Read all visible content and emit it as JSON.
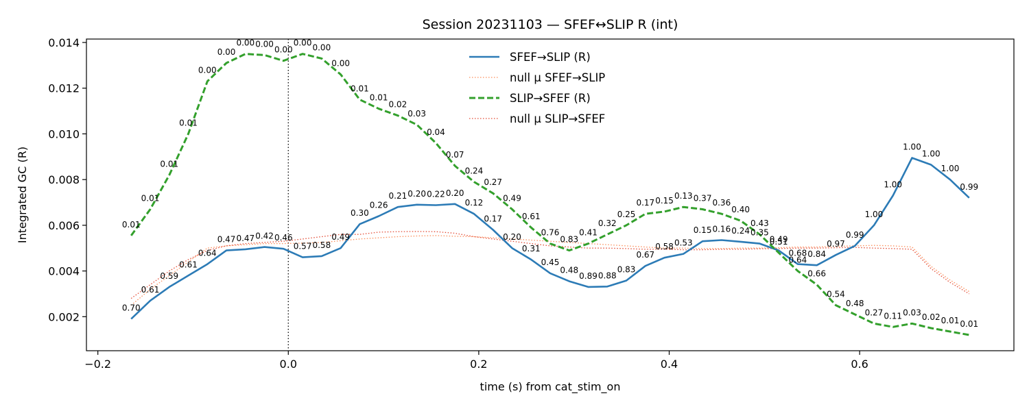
{
  "chart_data": {
    "type": "line",
    "title": "Session 20231103 — SFEF↔SLIP R (int)",
    "xlabel": "time (s) from cat_stim_on",
    "ylabel": "Integrated GC (R)",
    "xlim": [
      -0.212,
      0.762
    ],
    "ylim": [
      0.00051,
      0.01415
    ],
    "xticks": [
      -0.2,
      0.0,
      0.2,
      0.4,
      0.6
    ],
    "xtick_labels": [
      "−0.2",
      "0.0",
      "0.2",
      "0.4",
      "0.6"
    ],
    "yticks": [
      0.002,
      0.004,
      0.006,
      0.008,
      0.01,
      0.012,
      0.014
    ],
    "ytick_labels": [
      "0.002",
      "0.004",
      "0.006",
      "0.008",
      "0.010",
      "0.012",
      "0.014"
    ],
    "grid": false,
    "legend_position": "top-center",
    "vline": {
      "x": 0.0,
      "style": "dotted",
      "color": "#000000"
    },
    "x": [
      -0.165,
      -0.145,
      -0.125,
      -0.105,
      -0.085,
      -0.065,
      -0.045,
      -0.025,
      -0.005,
      0.015,
      0.035,
      0.055,
      0.075,
      0.095,
      0.115,
      0.135,
      0.155,
      0.175,
      0.195,
      0.215,
      0.235,
      0.255,
      0.275,
      0.295,
      0.315,
      0.335,
      0.355,
      0.375,
      0.395,
      0.415,
      0.435,
      0.455,
      0.475,
      0.495,
      0.515,
      0.535,
      0.555,
      0.575,
      0.595,
      0.615,
      0.635,
      0.655,
      0.675,
      0.695,
      0.715
    ],
    "series": [
      {
        "name": "SFEF→SLIP (R)",
        "color": "#2c7bb6",
        "style": "solid",
        "values": [
          0.0019,
          0.0027,
          0.0033,
          0.0038,
          0.0043,
          0.0049,
          0.00495,
          0.00505,
          0.00497,
          0.0046,
          0.00465,
          0.005,
          0.00605,
          0.0064,
          0.0068,
          0.0069,
          0.00688,
          0.00693,
          0.0065,
          0.0058,
          0.005,
          0.0045,
          0.0039,
          0.00355,
          0.0033,
          0.00332,
          0.00358,
          0.00422,
          0.00458,
          0.00475,
          0.0053,
          0.00535,
          0.00528,
          0.0052,
          0.0049,
          0.0043,
          0.00425,
          0.0047,
          0.0051,
          0.006,
          0.0073,
          0.00895,
          0.00865,
          0.008,
          0.0072
        ],
        "annotations": [
          "0.70",
          "0.61",
          "0.59",
          "0.61",
          "0.64",
          "0.47",
          "0.47",
          "0.42",
          "0.46",
          "0.57",
          "0.58",
          "0.49",
          "0.30",
          "0.26",
          "0.21",
          "0.20",
          "0.22",
          "0.20",
          "0.12",
          "0.17",
          "0.20",
          "0.31",
          "0.45",
          "0.48",
          "0.89",
          "0.88",
          "0.83",
          "0.67",
          "0.58",
          "0.53",
          "0.15",
          "0.16",
          "0.24",
          "0.35",
          "0.49",
          "0.68",
          "0.84",
          "0.97",
          "0.99",
          "1.00",
          "1.00",
          "1.00",
          "1.00",
          "1.00",
          "0.99"
        ]
      },
      {
        "name": "null μ SFEF→SLIP",
        "color": "#fc8d59",
        "style": "dotted",
        "values": [
          0.0025,
          0.0032,
          0.0038,
          0.0044,
          0.005,
          0.0051,
          0.00515,
          0.0052,
          0.0052,
          0.00522,
          0.00525,
          0.00532,
          0.0054,
          0.00545,
          0.0055,
          0.00553,
          0.00555,
          0.00552,
          0.0055,
          0.00545,
          0.0054,
          0.00535,
          0.0053,
          0.00525,
          0.0052,
          0.00515,
          0.0051,
          0.00505,
          0.005,
          0.005,
          0.00498,
          0.00498,
          0.005,
          0.005,
          0.00502,
          0.00505,
          0.00505,
          0.00508,
          0.0051,
          0.00512,
          0.0051,
          0.00505,
          0.0042,
          0.0036,
          0.0031
        ],
        "annotations": []
      },
      {
        "name": "SLIP→SFEF (R)",
        "color": "#33a02c",
        "style": "dashed",
        "values": [
          0.00555,
          0.0067,
          0.0082,
          0.01,
          0.0123,
          0.0131,
          0.0135,
          0.01345,
          0.0132,
          0.0135,
          0.0133,
          0.0126,
          0.0115,
          0.0111,
          0.0108,
          0.0104,
          0.0096,
          0.0086,
          0.0079,
          0.0074,
          0.0067,
          0.0059,
          0.0052,
          0.0049,
          0.0052,
          0.0056,
          0.006,
          0.0065,
          0.0066,
          0.0068,
          0.0067,
          0.0065,
          0.0062,
          0.0056,
          0.0048,
          0.004,
          0.0034,
          0.0025,
          0.0021,
          0.0017,
          0.00155,
          0.0017,
          0.0015,
          0.00135,
          0.0012
        ],
        "annotations": [
          "0.01",
          "0.01",
          "0.01",
          "0.01",
          "0.00",
          "0.00",
          "0.00",
          "0.00",
          "0.00",
          "0.00",
          "0.00",
          "0.00",
          "0.01",
          "0.01",
          "0.02",
          "0.03",
          "0.04",
          "0.07",
          "0.24",
          "0.27",
          "0.49",
          "0.61",
          "0.76",
          "0.83",
          "0.41",
          "0.32",
          "0.25",
          "0.17",
          "0.15",
          "0.13",
          "0.37",
          "0.36",
          "0.40",
          "0.43",
          "0.51",
          "0.64",
          "0.66",
          "0.54",
          "0.48",
          "0.27",
          "0.11",
          "0.03",
          "0.02",
          "0.01",
          "0.01"
        ]
      },
      {
        "name": "null μ SLIP→SFEF",
        "color": "#e34a33",
        "style": "dotted",
        "values": [
          0.0028,
          0.0034,
          0.004,
          0.0045,
          0.0049,
          0.0051,
          0.0052,
          0.00525,
          0.0053,
          0.0054,
          0.0055,
          0.0056,
          0.0056,
          0.0057,
          0.00572,
          0.00573,
          0.00572,
          0.00565,
          0.0055,
          0.0054,
          0.0053,
          0.0052,
          0.0051,
          0.00505,
          0.005,
          0.005,
          0.00498,
          0.00495,
          0.00495,
          0.00493,
          0.00493,
          0.00495,
          0.00495,
          0.00497,
          0.00498,
          0.005,
          0.005,
          0.00502,
          0.00503,
          0.005,
          0.00498,
          0.00495,
          0.0041,
          0.0035,
          0.003
        ],
        "annotations": []
      }
    ]
  }
}
